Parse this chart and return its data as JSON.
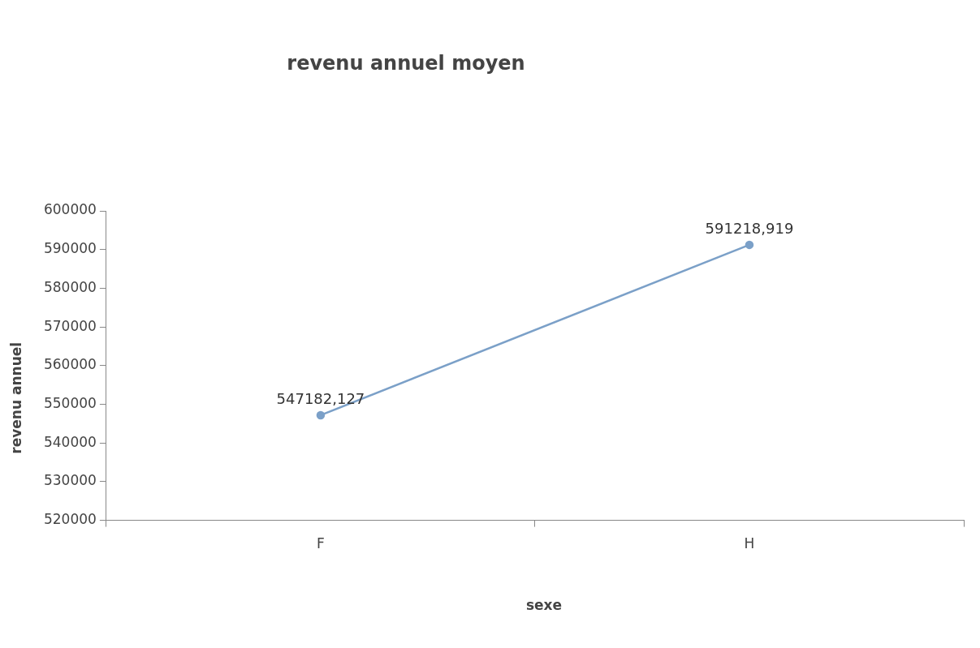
{
  "chart_data": {
    "type": "line",
    "title": "revenu annuel moyen",
    "xlabel": "sexe",
    "ylabel": "revenu annuel",
    "categories": [
      "F",
      "H"
    ],
    "series": [
      {
        "color": "#7ba0c8",
        "values": [
          547182.127,
          591218.919
        ],
        "value_labels": [
          "547182,127",
          "591218,919"
        ]
      }
    ],
    "ylim": [
      520000,
      600000
    ],
    "yticks": [
      520000,
      530000,
      540000,
      550000,
      560000,
      570000,
      580000,
      590000,
      600000
    ],
    "grid": false,
    "legend": false,
    "marker": "circle",
    "line_style": "solid"
  }
}
